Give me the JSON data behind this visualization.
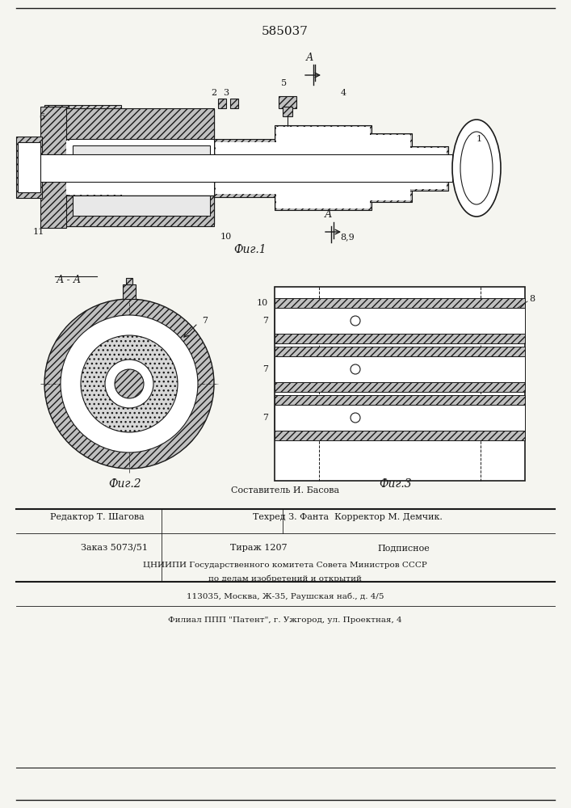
{
  "patent_number": "585037",
  "fig1_caption": "Фиг.1",
  "fig2_caption": "Фиг.2",
  "fig3_caption": "Фиг.3",
  "section_label": "А - А",
  "footer_lines": [
    "Составитель И. Басова",
    "Редактор Т. Шагова        Техред З. Фанта  Корректор М. Демчик.",
    "Заказ 5073/51              Тираж 1207         Подписное",
    "ЦНИИПИ Государственного комитета Совета Министров СССР",
    "по делам изобретений и открытий",
    "113035, Москва, Ж-35, Раушская наб., д. 4/5",
    "Филиал ППП \"Патент\", г. Ужгород, ул. Проектная, 4"
  ],
  "bg_color": "#f5f5f0",
  "line_color": "#1a1a1a",
  "hatch_color": "#333333",
  "fill_color": "#d0d0d0"
}
